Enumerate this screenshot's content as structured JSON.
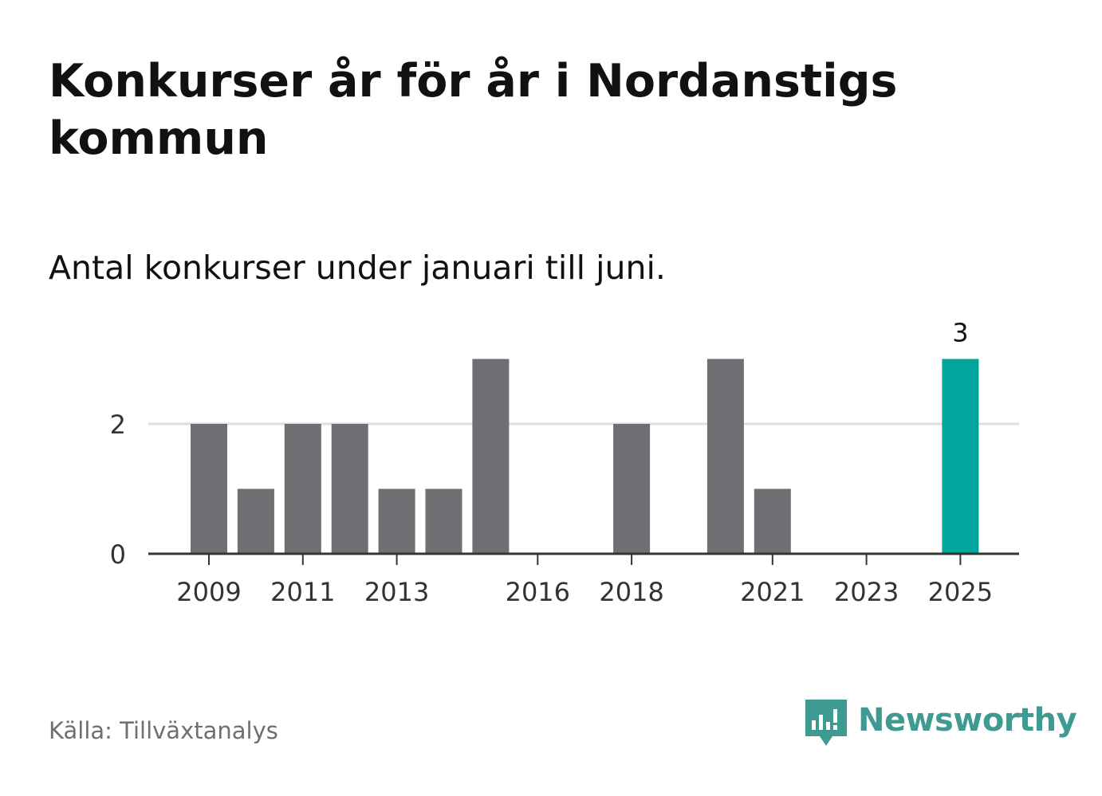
{
  "title": "Konkurser år för år i Nordanstigs kommun",
  "subtitle": "Antal konkurser under januari till juni.",
  "source": "Källa: Tillväxtanalys",
  "brand": {
    "name": "Newsworthy",
    "icon": "newsworthy-logo-icon",
    "color": "#3f9a92"
  },
  "colors": {
    "bar": "#6f6e73",
    "highlight": "#00a59b",
    "grid": "#dddddd",
    "axis": "#333333"
  },
  "chart_data": {
    "type": "bar",
    "categories": [
      "2009",
      "2010",
      "2011",
      "2012",
      "2013",
      "2014",
      "2015",
      "2016",
      "2017",
      "2018",
      "2019",
      "2020",
      "2021",
      "2022",
      "2023",
      "2024",
      "2025"
    ],
    "values": [
      2,
      1,
      2,
      2,
      1,
      1,
      3,
      0,
      0,
      2,
      0,
      3,
      1,
      0,
      0,
      0,
      3
    ],
    "highlight_category": "2025",
    "data_labels": [
      {
        "category": "2025",
        "label": "3"
      }
    ],
    "x_tick_labels": [
      "2009",
      "2011",
      "2013",
      "2016",
      "2018",
      "2021",
      "2023",
      "2025"
    ],
    "y_ticks": [
      0,
      2
    ],
    "y_tick_labels": [
      "0",
      "2"
    ],
    "ylim": [
      0,
      3.5
    ],
    "grid": true,
    "legend": "none",
    "xlabel": "",
    "ylabel": ""
  }
}
